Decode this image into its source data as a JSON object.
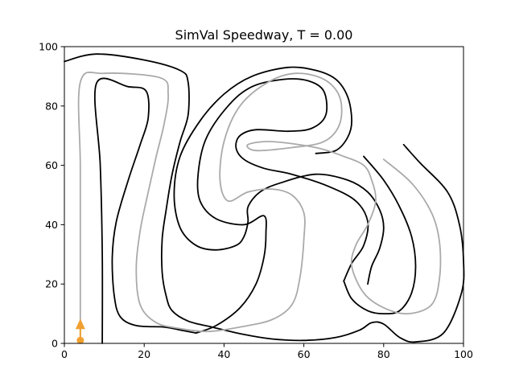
{
  "chart_data": {
    "type": "line",
    "title": "SimVal Speedway, T = 0.00",
    "xlabel": "",
    "ylabel": "",
    "xlim": [
      0,
      100
    ],
    "ylim": [
      0,
      100
    ],
    "xticks": [
      "0",
      "20",
      "40",
      "60",
      "80",
      "100"
    ],
    "yticks": [
      "0",
      "20",
      "40",
      "60",
      "80",
      "100"
    ],
    "grid": false,
    "colors": {
      "border": "#000000",
      "centerline": "#aaaaaa",
      "car": "#f0a030"
    },
    "series": [
      {
        "role": "outer-border",
        "points": [
          [
            0,
            95
          ],
          [
            8,
            97.5
          ],
          [
            20,
            95.5
          ],
          [
            29,
            92
          ],
          [
            31,
            88
          ],
          [
            31,
            77
          ],
          [
            29,
            68
          ],
          [
            27,
            57
          ],
          [
            25.5,
            45
          ],
          [
            24.5,
            35
          ],
          [
            24.5,
            24
          ],
          [
            25.5,
            16
          ],
          [
            27,
            11
          ],
          [
            31,
            7.5
          ],
          [
            37,
            5.5
          ],
          [
            45,
            3
          ],
          [
            52,
            1.5
          ],
          [
            60,
            1
          ],
          [
            68,
            2
          ],
          [
            74,
            4.5
          ],
          [
            77,
            7
          ],
          [
            80,
            6.5
          ],
          [
            84,
            2
          ],
          [
            88,
            0.5
          ],
          [
            95,
            3.5
          ],
          [
            99.5,
            17
          ],
          [
            100,
            28
          ],
          [
            99,
            40
          ],
          [
            96,
            51
          ],
          [
            89,
            61
          ],
          [
            85,
            67
          ]
        ]
      },
      {
        "role": "outer-border",
        "points": [
          [
            63,
            64
          ],
          [
            68,
            65
          ],
          [
            71,
            69.5
          ],
          [
            72,
            75
          ],
          [
            71,
            83
          ],
          [
            68,
            89
          ],
          [
            63,
            92
          ],
          [
            56,
            93
          ],
          [
            47,
            90
          ],
          [
            40,
            84
          ],
          [
            34,
            75
          ],
          [
            29,
            63
          ],
          [
            27.5,
            50
          ],
          [
            29,
            39
          ],
          [
            33,
            33
          ],
          [
            38,
            31.5
          ],
          [
            43,
            33
          ],
          [
            45,
            36
          ],
          [
            46,
            41
          ],
          [
            46,
            46
          ],
          [
            49,
            51
          ],
          [
            54,
            54
          ],
          [
            63,
            57
          ],
          [
            71,
            55
          ],
          [
            76,
            51
          ],
          [
            79,
            45
          ],
          [
            80,
            39
          ],
          [
            79,
            32
          ],
          [
            77,
            26
          ],
          [
            76,
            20
          ]
        ]
      },
      {
        "role": "inner-border",
        "points": [
          [
            9.5,
            0
          ],
          [
            9.5,
            30
          ],
          [
            9,
            60
          ],
          [
            8,
            87.5
          ],
          [
            16,
            86.5
          ],
          [
            20.5,
            85
          ],
          [
            21,
            76
          ],
          [
            19,
            67
          ],
          [
            16,
            55
          ],
          [
            13,
            41
          ],
          [
            12,
            29
          ],
          [
            12.5,
            16
          ],
          [
            14,
            9
          ],
          [
            18,
            6
          ],
          [
            25,
            5.5
          ],
          [
            29,
            4.5
          ],
          [
            33,
            3.5
          ]
        ]
      },
      {
        "role": "inner-border",
        "points": [
          [
            33,
            3.5
          ],
          [
            38,
            6
          ],
          [
            44,
            12
          ],
          [
            48,
            20
          ],
          [
            50,
            29
          ],
          [
            50.5,
            37
          ],
          [
            50,
            43
          ],
          [
            45,
            40
          ],
          [
            38,
            42
          ],
          [
            34,
            48
          ],
          [
            33.5,
            57
          ],
          [
            35.5,
            69
          ],
          [
            41,
            80
          ],
          [
            47,
            86.5
          ],
          [
            55,
            89
          ],
          [
            61,
            88.5
          ],
          [
            65,
            85
          ],
          [
            65.5,
            77
          ],
          [
            62,
            72.5
          ],
          [
            56,
            71.5
          ],
          [
            48,
            72
          ],
          [
            44,
            70
          ],
          [
            43,
            66
          ],
          [
            45,
            62
          ],
          [
            50,
            59
          ],
          [
            57,
            57
          ],
          [
            66,
            53
          ],
          [
            73,
            48
          ],
          [
            76,
            41
          ],
          [
            75,
            33
          ],
          [
            72,
            27
          ],
          [
            70,
            21
          ]
        ]
      },
      {
        "role": "inner-border",
        "points": [
          [
            70,
            21
          ],
          [
            72,
            15
          ],
          [
            76,
            11
          ],
          [
            80,
            10
          ],
          [
            84,
            11
          ],
          [
            87,
            17
          ],
          [
            88,
            26
          ],
          [
            87,
            36
          ],
          [
            84,
            46
          ],
          [
            80,
            55
          ],
          [
            75,
            63
          ]
        ]
      },
      {
        "role": "centerline",
        "points": [
          [
            4,
            1
          ],
          [
            4,
            30
          ],
          [
            4,
            60
          ],
          [
            4,
            88
          ],
          [
            10,
            91
          ],
          [
            24,
            89.5
          ],
          [
            26,
            84
          ],
          [
            25,
            74
          ],
          [
            23,
            63
          ],
          [
            21,
            51
          ],
          [
            19,
            38
          ],
          [
            18,
            25
          ],
          [
            19,
            13
          ],
          [
            23,
            7
          ],
          [
            29,
            5
          ],
          [
            36,
            4
          ],
          [
            44,
            5.5
          ],
          [
            52,
            8
          ],
          [
            57,
            13
          ],
          [
            59,
            22
          ],
          [
            60,
            35
          ],
          [
            60,
            44
          ],
          [
            57,
            50
          ],
          [
            52,
            52
          ],
          [
            46,
            51
          ],
          [
            41,
            48
          ],
          [
            39,
            55
          ],
          [
            40,
            68
          ],
          [
            44,
            80
          ],
          [
            51,
            88
          ],
          [
            58,
            91
          ],
          [
            65,
            89
          ],
          [
            69,
            83
          ],
          [
            69,
            74
          ],
          [
            65,
            68
          ],
          [
            57,
            66
          ],
          [
            48,
            65
          ],
          [
            46,
            67
          ],
          [
            52,
            68
          ],
          [
            63,
            66
          ],
          [
            70,
            63
          ],
          [
            75,
            60
          ],
          [
            77,
            55
          ],
          [
            78,
            48
          ],
          [
            76,
            40
          ],
          [
            73,
            33
          ],
          [
            72,
            26
          ],
          [
            75,
            17
          ],
          [
            80,
            12
          ],
          [
            86,
            10
          ],
          [
            92,
            13
          ],
          [
            94,
            22
          ],
          [
            94,
            34
          ],
          [
            92,
            44
          ],
          [
            87,
            54
          ],
          [
            80,
            62
          ]
        ]
      }
    ],
    "car": {
      "x": 4,
      "y": 1,
      "heading_deg": 90
    }
  }
}
